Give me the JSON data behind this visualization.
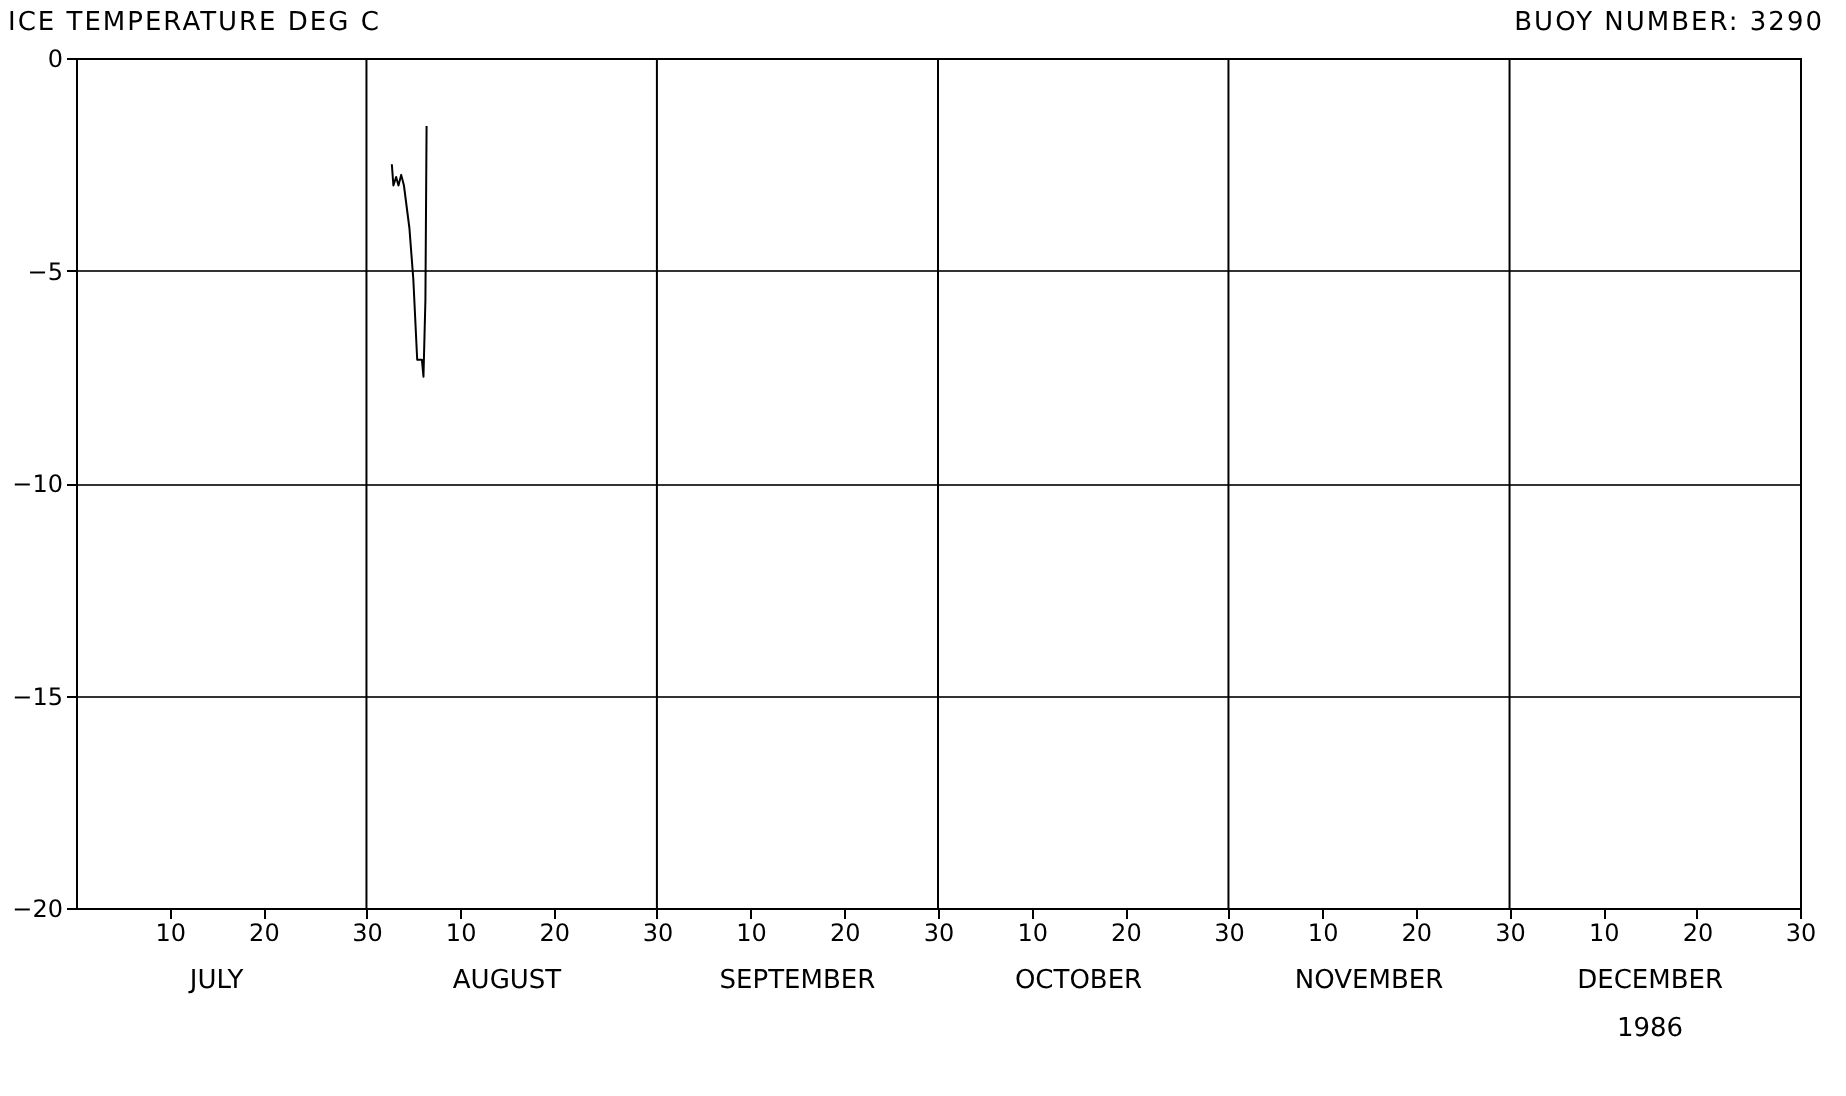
{
  "chart_data": {
    "type": "line",
    "title": "ICE TEMPERATURE DEG C",
    "subtitle": "BUOY NUMBER: 3290",
    "annotations": [
      "JULY",
      "AUGUST",
      "SEPTEMBER",
      "OCTOBER",
      "NOVEMBER",
      "DECEMBER",
      "1986"
    ],
    "x": [
      "1986-08-02T17:00",
      "1986-08-02T21:00",
      "1986-08-03T04:00",
      "1986-08-03T10:00",
      "1986-08-03T17:00",
      "1986-08-04T00:00",
      "1986-08-04T14:00",
      "1986-08-05T00:00",
      "1986-08-05T10:00",
      "1986-08-05T22:00",
      "1986-08-06T02:00",
      "1986-08-06T07:00",
      "1986-08-06T10:00"
    ],
    "series": [
      {
        "color": "#000000",
        "values": [
          -2.5,
          -3.0,
          -2.8,
          -3.0,
          -2.75,
          -3.0,
          -4.0,
          -5.2,
          -7.1,
          -7.1,
          -7.5,
          -5.7,
          -1.6
        ]
      }
    ],
    "xlim": [
      "1986-06-30",
      "1986-12-31"
    ],
    "xticks": [
      {
        "value": "1986-07-10",
        "label": "10"
      },
      {
        "value": "1986-07-20",
        "label": "20"
      },
      {
        "value": "1986-07-31",
        "label": "30"
      },
      {
        "value": "1986-08-10",
        "label": "10"
      },
      {
        "value": "1986-08-20",
        "label": "20"
      },
      {
        "value": "1986-08-31",
        "label": "30"
      },
      {
        "value": "1986-09-10",
        "label": "10"
      },
      {
        "value": "1986-09-20",
        "label": "20"
      },
      {
        "value": "1986-09-30",
        "label": "30"
      },
      {
        "value": "1986-10-10",
        "label": "10"
      },
      {
        "value": "1986-10-20",
        "label": "20"
      },
      {
        "value": "1986-10-31",
        "label": "30"
      },
      {
        "value": "1986-11-10",
        "label": "10"
      },
      {
        "value": "1986-11-20",
        "label": "20"
      },
      {
        "value": "1986-11-30",
        "label": "30"
      },
      {
        "value": "1986-12-10",
        "label": "10"
      },
      {
        "value": "1986-12-20",
        "label": "20"
      },
      {
        "value": "1986-12-31",
        "label": "30"
      }
    ],
    "ylim": [
      -20,
      0
    ],
    "yticks": [
      0,
      -5,
      -10,
      -15,
      -20
    ],
    "grid": "y",
    "ref_lines": [
      {
        "axis": "x",
        "value": "1986-07-31",
        "label": null
      },
      {
        "axis": "x",
        "value": "1986-08-31",
        "label": null
      },
      {
        "axis": "x",
        "value": "1986-09-30",
        "label": null
      },
      {
        "axis": "x",
        "value": "1986-10-31",
        "label": null
      },
      {
        "axis": "x",
        "value": "1986-11-30",
        "label": null
      }
    ],
    "line_style": "solid",
    "marker": "none",
    "legend": false
  }
}
